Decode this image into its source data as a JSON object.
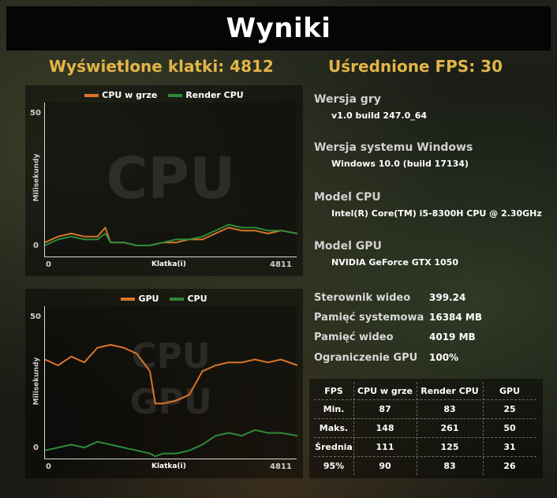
{
  "title": "Wyniki",
  "stats": {
    "frames_label": "Wyświetlone klatki: 4812",
    "fps_label": "Uśrednione FPS: 30"
  },
  "cpu_chart": {
    "legend": [
      {
        "name": "CPU w grze",
        "color": "#d9742a"
      },
      {
        "name": "Render CPU",
        "color": "#2e8a3a"
      }
    ],
    "watermark": "CPU",
    "y_max": "50",
    "y_min": "0",
    "x_min": "0",
    "x_max": "4811",
    "xlabel": "Klatka(i)",
    "ylabel": "Milisekundy"
  },
  "gpu_chart": {
    "legend": [
      {
        "name": "GPU",
        "color": "#d9742a"
      },
      {
        "name": "CPU",
        "color": "#2e8a3a"
      }
    ],
    "watermark_line1": "CPU",
    "watermark_line2": "GPU",
    "y_max": "50",
    "y_min": "0",
    "x_min": "0",
    "x_max": "4811",
    "xlabel": "Klatka(i)",
    "ylabel": "Milisekundy"
  },
  "system": {
    "game_version_label": "Wersja gry",
    "game_version": "v1.0 build 247.0_64",
    "windows_label": "Wersja systemu Windows",
    "windows": "Windows 10.0 (build 17134)",
    "cpu_label": "Model CPU",
    "cpu": "Intel(R) Core(TM) i5-8300H CPU @ 2.30GHz",
    "gpu_label": "Model GPU",
    "gpu": "NVIDIA GeForce GTX 1050",
    "driver_label": "Sterownik wideo",
    "driver": "399.24",
    "sysmem_label": "Pamięć systemowa",
    "sysmem": "16384 MB",
    "vidmem_label": "Pamięć wideo",
    "vidmem": "4019 MB",
    "gpu_limit_label": "Ograniczenie GPU",
    "gpu_limit": "100%"
  },
  "fps_table": {
    "headers": [
      "FPS",
      "CPU w grze",
      "Render CPU",
      "GPU"
    ],
    "rows": [
      [
        "Min.",
        "87",
        "83",
        "25"
      ],
      [
        "Maks.",
        "148",
        "261",
        "50"
      ],
      [
        "Średnia",
        "111",
        "125",
        "31"
      ],
      [
        "95%",
        "90",
        "83",
        "26"
      ]
    ]
  },
  "chart_data": [
    {
      "type": "line",
      "xlabel": "Klatka(i)",
      "ylabel": "Milisekundy",
      "xlim": [
        0,
        4811
      ],
      "ylim": [
        0,
        50
      ],
      "x": [
        0,
        250,
        500,
        750,
        1000,
        1150,
        1250,
        1500,
        1750,
        2000,
        2250,
        2500,
        2750,
        3000,
        3250,
        3500,
        3750,
        4000,
        4250,
        4500,
        4811
      ],
      "series": [
        {
          "name": "CPU w grze",
          "values": [
            5,
            7,
            8,
            7,
            7,
            10,
            5,
            5,
            4,
            4,
            5,
            5,
            6,
            6,
            8,
            10,
            9,
            9,
            8,
            9,
            8
          ]
        },
        {
          "name": "Render CPU",
          "values": [
            4,
            6,
            7,
            6,
            6,
            8,
            5,
            5,
            4,
            4,
            5,
            6,
            6,
            7,
            9,
            11,
            10,
            10,
            9,
            9,
            8
          ]
        }
      ]
    },
    {
      "type": "line",
      "xlabel": "Klatka(i)",
      "ylabel": "Milisekundy",
      "xlim": [
        0,
        4811
      ],
      "ylim": [
        0,
        50
      ],
      "x": [
        0,
        250,
        500,
        750,
        1000,
        1250,
        1500,
        1750,
        2000,
        2100,
        2250,
        2500,
        2750,
        3000,
        3250,
        3500,
        3750,
        4000,
        4250,
        4500,
        4811
      ],
      "series": [
        {
          "name": "GPU",
          "values": [
            34,
            32,
            35,
            33,
            38,
            39,
            38,
            36,
            30,
            19,
            19,
            20,
            22,
            30,
            32,
            33,
            33,
            34,
            33,
            34,
            32
          ]
        },
        {
          "name": "CPU",
          "values": [
            3,
            4,
            5,
            4,
            6,
            5,
            4,
            3,
            2,
            1,
            2,
            2,
            3,
            5,
            8,
            9,
            8,
            10,
            9,
            9,
            8
          ]
        }
      ]
    }
  ]
}
